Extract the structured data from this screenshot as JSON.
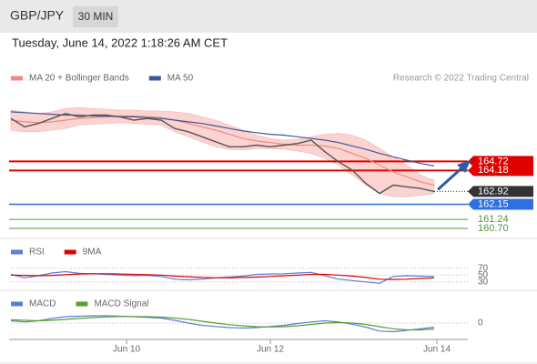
{
  "header": {
    "symbol": "GBP/JPY",
    "interval": "30 MIN",
    "timestamp": "Tuesday, June 14, 2022 1:18:26 AM CET"
  },
  "chart_data": [
    {
      "type": "line",
      "credit": "Research © 2022 Trading Central",
      "x": [
        0,
        1,
        2,
        3,
        4,
        5,
        6,
        7,
        8,
        9,
        10,
        11,
        12,
        13,
        14,
        15,
        16,
        17,
        18,
        19,
        20,
        21,
        22,
        23,
        24,
        25,
        26,
        27,
        28,
        29,
        30,
        31
      ],
      "xlim": [
        0,
        33.33
      ],
      "ylim": [
        160.1,
        168.95
      ],
      "price": {
        "color": "#555555",
        "values": [
          167.3,
          166.8,
          167.0,
          167.3,
          167.6,
          167.4,
          167.5,
          167.5,
          167.4,
          167.2,
          167.3,
          167.2,
          166.7,
          166.5,
          166.2,
          165.9,
          165.6,
          165.6,
          165.7,
          165.6,
          165.7,
          165.8,
          166.0,
          165.3,
          164.7,
          164.2,
          163.4,
          162.8,
          163.3,
          163.2,
          163.1,
          162.92
        ]
      },
      "bands": {
        "color": "#fbd3d0",
        "upper": [
          167.8,
          167.7,
          167.6,
          167.7,
          167.9,
          167.95,
          167.9,
          167.85,
          167.8,
          167.8,
          167.75,
          167.75,
          167.7,
          167.6,
          167.4,
          167.2,
          166.9,
          166.6,
          166.3,
          166.1,
          166.0,
          166.05,
          166.2,
          166.35,
          166.4,
          166.3,
          166.0,
          165.5,
          165.0,
          164.5,
          163.9,
          163.6
        ],
        "lower": [
          166.6,
          166.5,
          166.5,
          166.6,
          166.7,
          166.9,
          166.95,
          167.0,
          167.05,
          167.0,
          166.95,
          166.9,
          166.5,
          166.2,
          165.9,
          165.6,
          165.45,
          165.4,
          165.5,
          165.5,
          165.45,
          165.35,
          165.2,
          164.9,
          164.5,
          163.9,
          163.3,
          162.8,
          162.6,
          162.6,
          162.7,
          162.8
        ]
      },
      "series": [
        {
          "name": "MA 20 + Bollinger Bands",
          "color": "#f08a80",
          "values": [
            167.2,
            167.1,
            167.05,
            167.1,
            167.2,
            167.3,
            167.35,
            167.4,
            167.45,
            167.45,
            167.4,
            167.35,
            167.2,
            167.0,
            166.8,
            166.6,
            166.35,
            166.1,
            165.95,
            165.85,
            165.75,
            165.7,
            165.7,
            165.65,
            165.5,
            165.2,
            164.9,
            164.5,
            164.1,
            163.8,
            163.5,
            163.3
          ]
        },
        {
          "name": "MA 50",
          "color": "#3d5a98",
          "values": [
            167.7,
            167.65,
            167.6,
            167.55,
            167.5,
            167.5,
            167.45,
            167.45,
            167.4,
            167.4,
            167.35,
            167.3,
            167.2,
            167.1,
            167.0,
            166.85,
            166.7,
            166.55,
            166.45,
            166.35,
            166.3,
            166.2,
            166.1,
            166.0,
            165.85,
            165.65,
            165.45,
            165.2,
            165.0,
            164.8,
            164.6,
            164.45
          ]
        }
      ],
      "levels": [
        {
          "value": 164.72,
          "label": "164.72",
          "color": "#e00000",
          "box": true
        },
        {
          "value": 164.18,
          "label": "164.18",
          "color": "#e00000",
          "box": true
        },
        {
          "value": 162.15,
          "label": "162.15",
          "color": "#2f6fdf",
          "box": true
        },
        {
          "value": 161.24,
          "label": "161.24",
          "color": "#4a9a3a",
          "box": false
        },
        {
          "value": 160.7,
          "label": "160.70",
          "color": "#4a9a3a",
          "box": false
        }
      ]
    },
    {
      "type": "line",
      "x": [
        0,
        1,
        2,
        3,
        4,
        5,
        6,
        7,
        8,
        9,
        10,
        11,
        12,
        13,
        14,
        15,
        16,
        17,
        18,
        19,
        20,
        21,
        22,
        23,
        24,
        25,
        26,
        27,
        28,
        29,
        30,
        31
      ],
      "xlim": [
        0,
        33.33
      ],
      "ylim": [
        0,
        100
      ],
      "yticks": [
        70,
        50,
        30
      ],
      "grid": true,
      "series": [
        {
          "name": "RSI",
          "color": "#5b7fd6",
          "values": [
            52,
            42,
            48,
            56,
            60,
            55,
            54,
            52,
            50,
            48,
            49,
            46,
            38,
            36,
            38,
            42,
            44,
            47,
            52,
            53,
            54,
            56,
            58,
            48,
            38,
            34,
            30,
            26,
            46,
            48,
            47,
            46
          ]
        },
        {
          "name": "9MA",
          "color": "#e00000",
          "values": [
            50,
            49,
            48,
            49,
            51,
            53,
            54,
            54,
            53,
            52,
            51,
            50,
            47,
            45,
            43,
            42,
            42,
            43,
            44,
            46,
            48,
            50,
            52,
            52,
            50,
            47,
            43,
            38,
            37,
            38,
            40,
            42
          ]
        }
      ]
    },
    {
      "type": "line",
      "x": [
        0,
        1,
        2,
        3,
        4,
        5,
        6,
        7,
        8,
        9,
        10,
        11,
        12,
        13,
        14,
        15,
        16,
        17,
        18,
        19,
        20,
        21,
        22,
        23,
        24,
        25,
        26,
        27,
        28,
        29,
        30,
        31
      ],
      "xlim": [
        0,
        33.33
      ],
      "ylim": [
        -0.6,
        0.6
      ],
      "yticks": [
        0
      ],
      "grid": true,
      "xticks": [
        {
          "value": 8.47,
          "label": "Jun 10"
        },
        {
          "value": 19.0,
          "label": "Jun 12"
        },
        {
          "value": 31.2,
          "label": "Jun 14"
        }
      ],
      "series": [
        {
          "name": "MACD",
          "color": "#5b7fd6",
          "values": [
            0.1,
            0.05,
            0.1,
            0.2,
            0.28,
            0.3,
            0.32,
            0.32,
            0.3,
            0.28,
            0.25,
            0.22,
            0.12,
            0,
            -0.1,
            -0.15,
            -0.2,
            -0.22,
            -0.2,
            -0.15,
            -0.1,
            -0.02,
            0.05,
            0.1,
            0.05,
            -0.05,
            -0.18,
            -0.35,
            -0.38,
            -0.32,
            -0.25,
            -0.18
          ]
        },
        {
          "name": "MACD Signal",
          "color": "#5aa02c",
          "values": [
            0.15,
            0.12,
            0.1,
            0.12,
            0.16,
            0.2,
            0.24,
            0.27,
            0.29,
            0.29,
            0.28,
            0.26,
            0.22,
            0.16,
            0.08,
            0,
            -0.07,
            -0.12,
            -0.16,
            -0.17,
            -0.16,
            -0.12,
            -0.06,
            0,
            0.02,
            0,
            -0.06,
            -0.16,
            -0.25,
            -0.3,
            -0.3,
            -0.26
          ]
        }
      ]
    }
  ]
}
